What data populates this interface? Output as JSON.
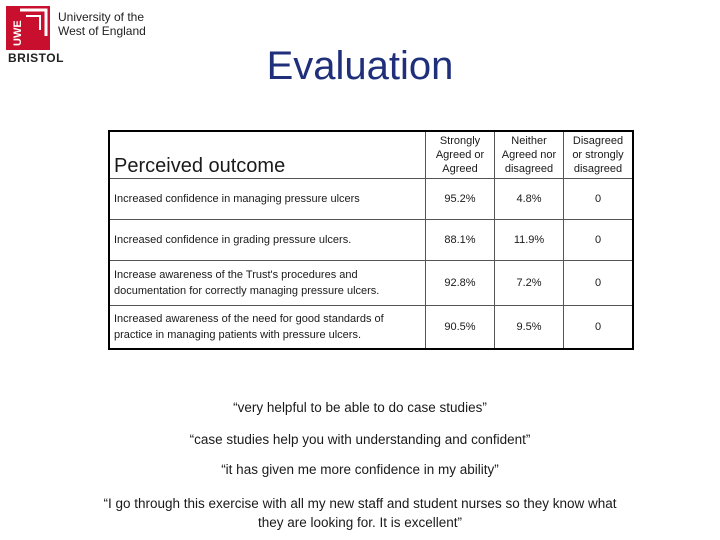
{
  "logo": {
    "mark_letters": "UWE",
    "bristol": "BRISTOL",
    "line1": "University of the",
    "line2": "West of England"
  },
  "title": "Evaluation",
  "table": {
    "header": {
      "outcome": "Perceived outcome",
      "col1": "Strongly Agreed or Agreed",
      "col2": "Neither Agreed nor disagreed",
      "col3": "Disagreed or strongly disagreed"
    },
    "rows": [
      {
        "label": "Increased confidence in managing pressure ulcers",
        "v1": "95.2%",
        "v2": "4.8%",
        "v3": "0"
      },
      {
        "label": "Increased confidence in grading pressure ulcers.",
        "v1": "88.1%",
        "v2": "11.9%",
        "v3": "0"
      },
      {
        "label": "Increase awareness of the Trust's procedures and documentation for correctly managing pressure ulcers.",
        "v1": "92.8%",
        "v2": "7.2%",
        "v3": "0"
      },
      {
        "label": "Increased awareness of the need for good standards of practice in managing patients with pressure ulcers.",
        "v1": "90.5%",
        "v2": "9.5%",
        "v3": "0"
      }
    ]
  },
  "quotes": [
    "“very helpful to be able to do case studies”",
    "“case studies help you with understanding and confident”",
    "“it has given me more confidence in my ability”",
    "“I go through this exercise with all my new staff and student nurses so they know what they are looking for. It is excellent”"
  ],
  "colors": {
    "title": "#1f2f7a",
    "logo_red": "#c8102e"
  }
}
